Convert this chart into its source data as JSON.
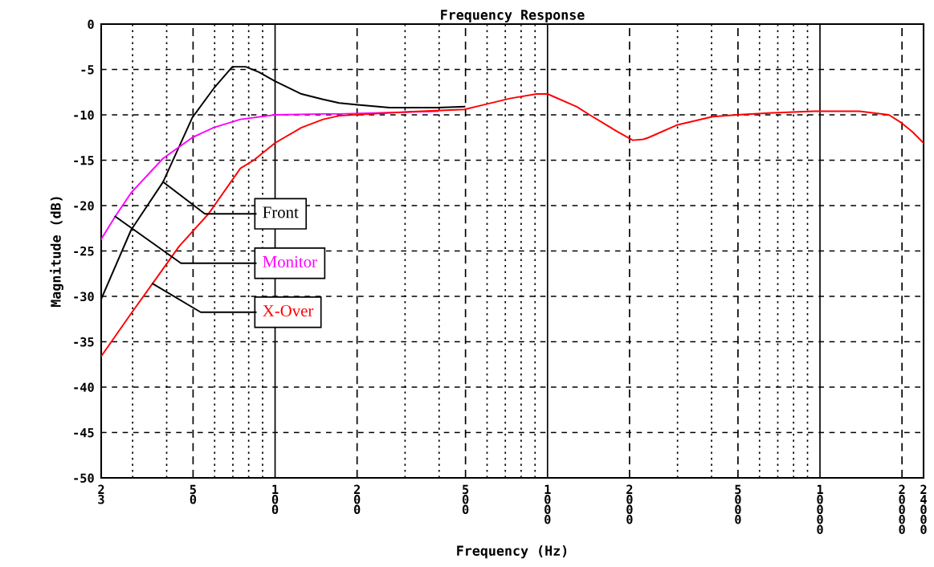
{
  "chart_data": {
    "type": "line",
    "title": "Frequency Response",
    "xlabel": "Frequency (Hz)",
    "ylabel": "Magnitude (dB)",
    "log": "x",
    "grid": true,
    "legend": false,
    "xlim": [
      23,
      24000
    ],
    "ylim": [
      -50,
      0
    ],
    "xticks": [
      23,
      {
        "value": 30,
        "label": null
      },
      {
        "value": 40,
        "label": null
      },
      50,
      {
        "value": 60,
        "label": null
      },
      {
        "value": 70,
        "label": null
      },
      {
        "value": 80,
        "label": null
      },
      {
        "value": 90,
        "label": null
      },
      100,
      200,
      {
        "value": 300,
        "label": null
      },
      {
        "value": 400,
        "label": null
      },
      500,
      {
        "value": 600,
        "label": null
      },
      {
        "value": 700,
        "label": null
      },
      {
        "value": 800,
        "label": null
      },
      {
        "value": 900,
        "label": null
      },
      1000,
      2000,
      {
        "value": 3000,
        "label": null
      },
      {
        "value": 4000,
        "label": null
      },
      5000,
      {
        "value": 6000,
        "label": null
      },
      {
        "value": 7000,
        "label": null
      },
      {
        "value": 8000,
        "label": null
      },
      {
        "value": 9000,
        "label": null
      },
      10000,
      20000,
      24000
    ],
    "yticks": [
      0,
      -5,
      -10,
      -15,
      -20,
      -25,
      -30,
      -35,
      -40,
      -45,
      -50
    ],
    "series": [
      {
        "name": "Front",
        "color": "#000000",
        "x": [
          23,
          29.6,
          38.8,
          49.7,
          59.5,
          69.7,
          78,
          87.3,
          100,
          125,
          150,
          172,
          201,
          263,
          395,
          496
        ],
        "values": [
          -30.3,
          -22.7,
          -17.4,
          -10.3,
          -7.1,
          -4.7,
          -4.7,
          -5.3,
          -6.3,
          -7.7,
          -8.3,
          -8.7,
          -8.9,
          -9.2,
          -9.2,
          -9.1
        ]
      },
      {
        "name": "Monitor",
        "color": "#ff00ff",
        "x": [
          23,
          25.9,
          29.6,
          38.8,
          49.7,
          59.5,
          74.6,
          100,
          150,
          172,
          395
        ],
        "values": [
          -23.7,
          -21.2,
          -18.6,
          -14.8,
          -12.5,
          -11.4,
          -10.5,
          -10.0,
          -9.9,
          -9.9,
          -9.6
        ]
      },
      {
        "name": "X-Over",
        "color": "#ff0000",
        "x": [
          23,
          29.6,
          35.5,
          44.4,
          57,
          74.6,
          83.5,
          100,
          125,
          150,
          172,
          295,
          496,
          581,
          727,
          912,
          1000,
          1280,
          1427,
          1794,
          2055,
          2244,
          2350,
          3000,
          4035,
          4950,
          6490,
          9480,
          13940,
          17900,
          19950,
          21900,
          24000
        ],
        "values": [
          -36.6,
          -31.9,
          -28.6,
          -24.5,
          -20.9,
          -15.9,
          -15.0,
          -13.1,
          -11.4,
          -10.5,
          -10.1,
          -9.7,
          -9.4,
          -8.9,
          -8.2,
          -7.7,
          -7.7,
          -9.1,
          -10.0,
          -11.8,
          -12.8,
          -12.7,
          -12.5,
          -11.1,
          -10.2,
          -10.0,
          -9.8,
          -9.6,
          -9.6,
          -10.0,
          -10.9,
          -11.9,
          -13.1
        ]
      }
    ]
  }
}
